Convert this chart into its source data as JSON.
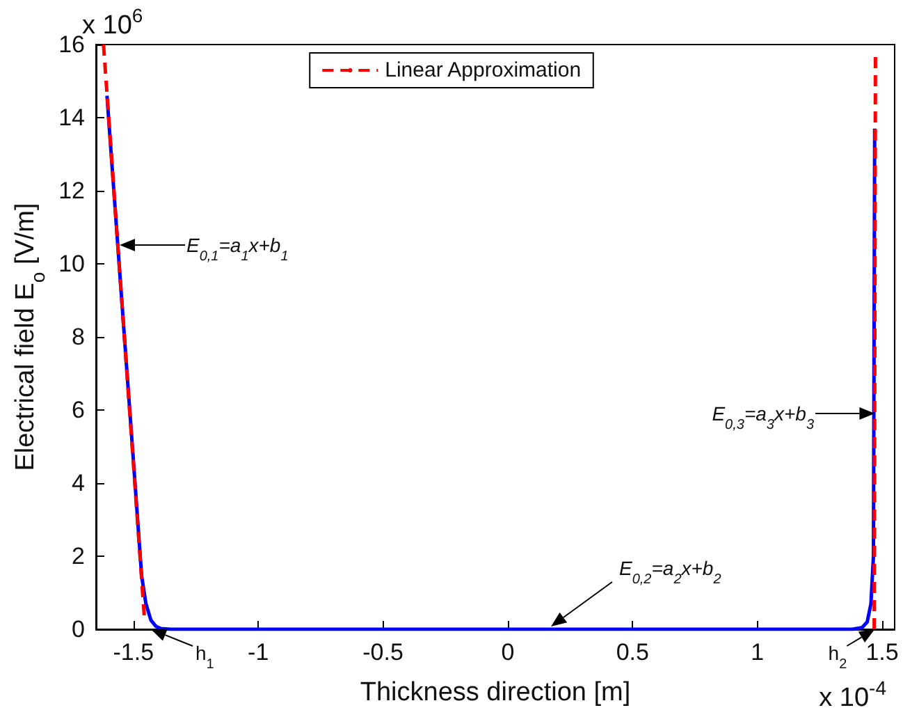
{
  "chart_data": {
    "type": "line",
    "xlabel": "Thickness direction [m]",
    "ylabel": "Electrical field  E$_{o}$ [V/m]",
    "xlim": [
      -1.65,
      1.55
    ],
    "xticks": [
      -1.5,
      -1,
      -0.5,
      0,
      0.5,
      1,
      1.5
    ],
    "ylim": [
      0,
      16
    ],
    "yticks": [
      0,
      2,
      4,
      6,
      8,
      10,
      12,
      14,
      16
    ],
    "grid": false,
    "legend": "top",
    "marker": "none",
    "series": [
      {
        "color": "#0000ff",
        "line_style": "solid",
        "x": [
          -1.606,
          -1.55,
          -1.5,
          -1.467,
          -1.45,
          -1.43,
          -1.41,
          -1.39,
          -1.35,
          0,
          1.38,
          1.42,
          1.44,
          1.455,
          1.465,
          1.47
        ],
        "values": [
          14.6,
          9.3,
          4.6,
          1.45,
          0.7,
          0.25,
          0.08,
          0.02,
          0,
          0,
          0,
          0.05,
          0.2,
          0.7,
          2,
          13.7
        ]
      },
      {
        "name": "Linear Approximation",
        "color": "#ff0000",
        "line_style": "dashed",
        "x": [
          -1.62,
          -1.456,
          0,
          1.468,
          1.473
        ],
        "values": [
          16,
          0.3,
          null,
          0,
          15.7
        ]
      }
    ],
    "annotations": [
      {
        "text": "h$_{1}$",
        "x": -1.43,
        "y": 0
      },
      {
        "text": "h$_{2}$",
        "x": 1.47,
        "y": 0
      },
      "E$_{0,1}$=a$_{1}$x+b$_{1}$",
      "E$_{0,2}$=a$_{2}$x+b$_{2}$",
      "E$_{0,3}$=a$_{3}$x+b$_{3}$",
      "x 10$^{6}$",
      "x 10$^{-4}$"
    ]
  }
}
